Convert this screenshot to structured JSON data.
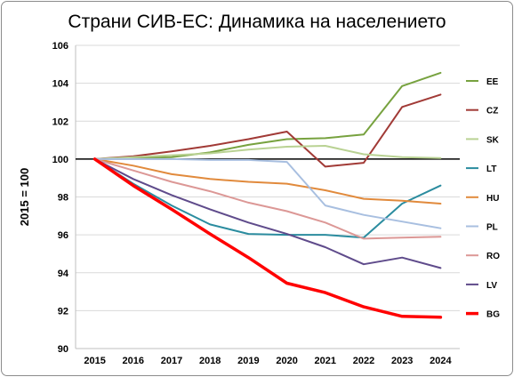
{
  "chart_data": {
    "type": "line",
    "title": "Страни СИВ-ЕС: Динамика на населението",
    "xlabel": "",
    "ylabel": "2015 = 100",
    "x": [
      "2015",
      "2016",
      "2017",
      "2018",
      "2019",
      "2020",
      "2021",
      "2022",
      "2023",
      "2024"
    ],
    "ylim": [
      90,
      106
    ],
    "yticks": [
      "90",
      "92",
      "94",
      "96",
      "98",
      "100",
      "102",
      "104",
      "106"
    ],
    "grid": true,
    "legend_position": "right",
    "series": [
      {
        "name": "EE",
        "color": "#77a23f",
        "values": [
          100,
          100.05,
          100.1,
          100.35,
          100.75,
          101.05,
          101.1,
          101.3,
          103.85,
          104.55
        ]
      },
      {
        "name": "CZ",
        "color": "#a13a36",
        "values": [
          100,
          100.15,
          100.4,
          100.7,
          101.05,
          101.45,
          99.6,
          99.8,
          102.75,
          103.4
        ]
      },
      {
        "name": "SK",
        "color": "#b9d293",
        "values": [
          100,
          100.1,
          100.2,
          100.3,
          100.5,
          100.65,
          100.7,
          100.25,
          100.1,
          100.05
        ]
      },
      {
        "name": "LT",
        "color": "#2b8c9f",
        "values": [
          100,
          98.7,
          97.55,
          96.55,
          96.05,
          96.0,
          96.0,
          95.85,
          97.65,
          98.6
        ]
      },
      {
        "name": "HU",
        "color": "#e18a3c",
        "values": [
          100,
          99.65,
          99.2,
          98.95,
          98.8,
          98.7,
          98.35,
          97.9,
          97.8,
          97.65
        ]
      },
      {
        "name": "PL",
        "color": "#a8bfe0",
        "values": [
          100,
          100.0,
          100.0,
          99.95,
          99.95,
          99.85,
          97.55,
          97.05,
          96.7,
          96.35
        ]
      },
      {
        "name": "RO",
        "color": "#dc9896",
        "values": [
          100,
          99.4,
          98.8,
          98.3,
          97.7,
          97.25,
          96.65,
          95.8,
          95.85,
          95.9
        ]
      },
      {
        "name": "LV",
        "color": "#5f4b8b",
        "values": [
          100,
          98.95,
          98.1,
          97.35,
          96.65,
          96.05,
          95.35,
          94.45,
          94.8,
          94.25
        ]
      },
      {
        "name": "BG",
        "color": "#ff0000",
        "values": [
          100,
          98.6,
          97.35,
          96.05,
          94.8,
          93.45,
          92.95,
          92.2,
          91.7,
          91.65
        ],
        "emphasis": true
      }
    ]
  }
}
